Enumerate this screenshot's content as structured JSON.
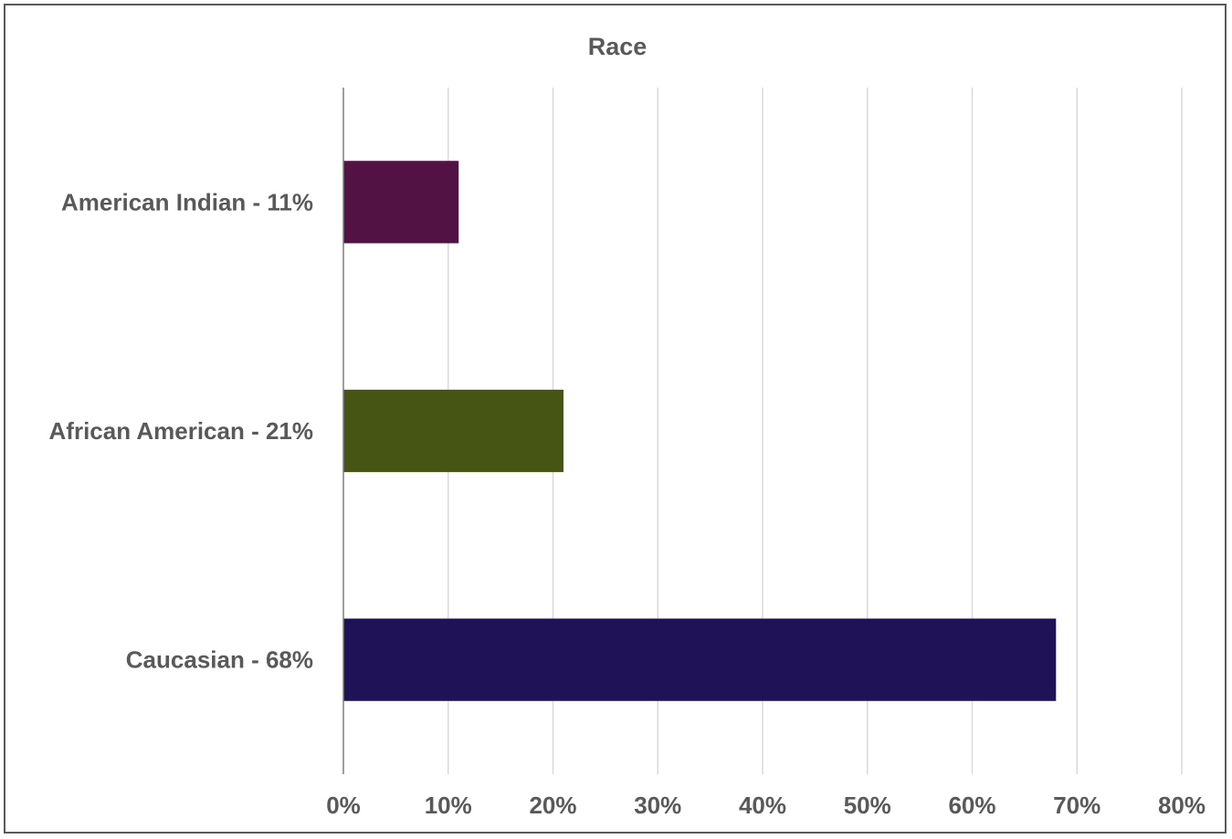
{
  "chart_data": {
    "type": "bar",
    "orientation": "horizontal",
    "title": "Race",
    "xlabel": "",
    "ylabel": "",
    "categories": [
      "American Indian - 11%",
      "African American - 21%",
      "Caucasian - 68%"
    ],
    "values": [
      11,
      21,
      68
    ],
    "colors": [
      "#531244",
      "#465514",
      "#201257"
    ],
    "xlim": [
      0,
      80
    ],
    "xticks": [
      0,
      10,
      20,
      30,
      40,
      50,
      60,
      70,
      80
    ],
    "xtick_labels": [
      "0%",
      "10%",
      "20%",
      "30%",
      "40%",
      "50%",
      "60%",
      "70%",
      "80%"
    ],
    "grid": true,
    "legend": "none"
  }
}
